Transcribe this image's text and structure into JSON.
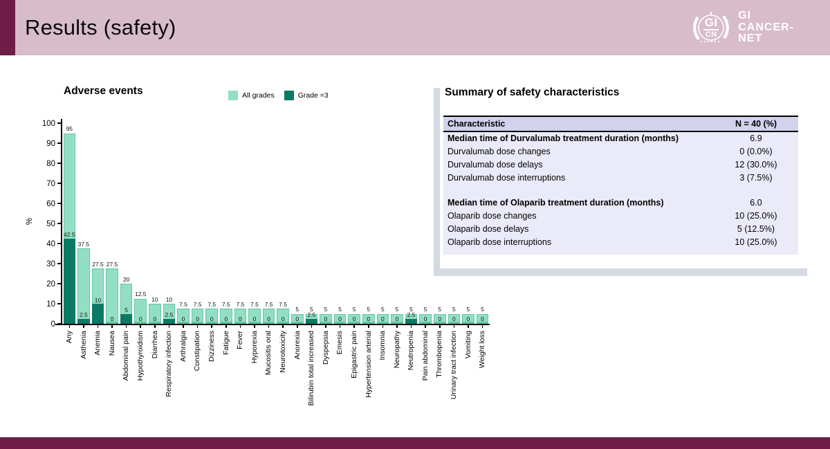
{
  "slide": {
    "title": "Results (safety)"
  },
  "logo": {
    "circle_top": "GI",
    "circle_bottom": "CN",
    "lines": [
      "GI",
      "CANCER-",
      "NET"
    ]
  },
  "colors": {
    "header_bg": "#d8bcca",
    "accent_maroon": "#6e1e46",
    "all_grades_green": "#93dfc3",
    "grade3_teal": "#0b7a65",
    "table_header_bg": "#d2d2ed",
    "table_body_bg": "#eaeaf8",
    "panel_shadow": "#d3dae2"
  },
  "chart_data": {
    "type": "bar",
    "title": "Adverse events",
    "xlabel": "",
    "ylabel": "%",
    "ylim": [
      0,
      100
    ],
    "yticks": [
      0,
      10,
      20,
      30,
      40,
      50,
      60,
      70,
      80,
      90,
      100
    ],
    "grid": false,
    "legend_position": "top",
    "categories": [
      "Any",
      "Asthenia",
      "Anemia",
      "Nausea",
      "Abdominal pain",
      "Hypothyroidism",
      "Diarrhea",
      "Respiratory infection",
      "Arthralgia",
      "Constipation",
      "Dizziness",
      "Fatigue",
      "Fever",
      "Hyporexia",
      "Mucositis oral",
      "Neurotoxicity",
      "Anorexia",
      "Bilirubin total increased",
      "Dyspepsia",
      "Emesis",
      "Epigastric pain",
      "Hypertension arterial",
      "Insomnia",
      "Neuropathy",
      "Neutropenia",
      "Pain abdominal",
      "Thrombopenia",
      "Urinary tract infection",
      "Vomiting",
      "Weight loss"
    ],
    "series": [
      {
        "name": "All grades",
        "color": "#93dfc3",
        "values": [
          95,
          37.5,
          27.5,
          27.5,
          20,
          12.5,
          10,
          10,
          7.5,
          7.5,
          7.5,
          7.5,
          7.5,
          7.5,
          7.5,
          7.5,
          5,
          5,
          5,
          5,
          5,
          5,
          5,
          5,
          5,
          5,
          5,
          5,
          5,
          5
        ]
      },
      {
        "name": "Grade =3",
        "color": "#0b7a65",
        "values": [
          42.5,
          2.5,
          10,
          0,
          5,
          0,
          0,
          2.5,
          0,
          0,
          0,
          0,
          0,
          0,
          0,
          0,
          0,
          2.5,
          0,
          0,
          0,
          0,
          0,
          0,
          2.5,
          0,
          0,
          0,
          0,
          0
        ]
      }
    ]
  },
  "summary_table": {
    "title": "Summary of safety characteristics",
    "header": [
      "Characteristic",
      "N = 40 (%)"
    ],
    "rows": [
      {
        "label": "Median time of Durvalumab treatment duration (months)",
        "value": "6.9",
        "bold": true
      },
      {
        "label": "Durvalumab dose changes",
        "value": "0 (0.0%)",
        "bold": false
      },
      {
        "label": "Durvalumab dose delays",
        "value": "12 (30.0%)",
        "bold": false
      },
      {
        "label": "Durvalumab dose interruptions",
        "value": "3 (7.5%)",
        "bold": false
      },
      {
        "label": "",
        "value": "",
        "spacer": true
      },
      {
        "label": "Median time of Olaparib treatment duration (months)",
        "value": "6.0",
        "bold": true
      },
      {
        "label": "Olaparib dose changes",
        "value": "10 (25.0%)",
        "bold": false
      },
      {
        "label": "Olaparib dose delays",
        "value": "5 (12.5%)",
        "bold": false
      },
      {
        "label": "Olaparib dose interruptions",
        "value": "10 (25.0%)",
        "bold": false
      }
    ]
  }
}
